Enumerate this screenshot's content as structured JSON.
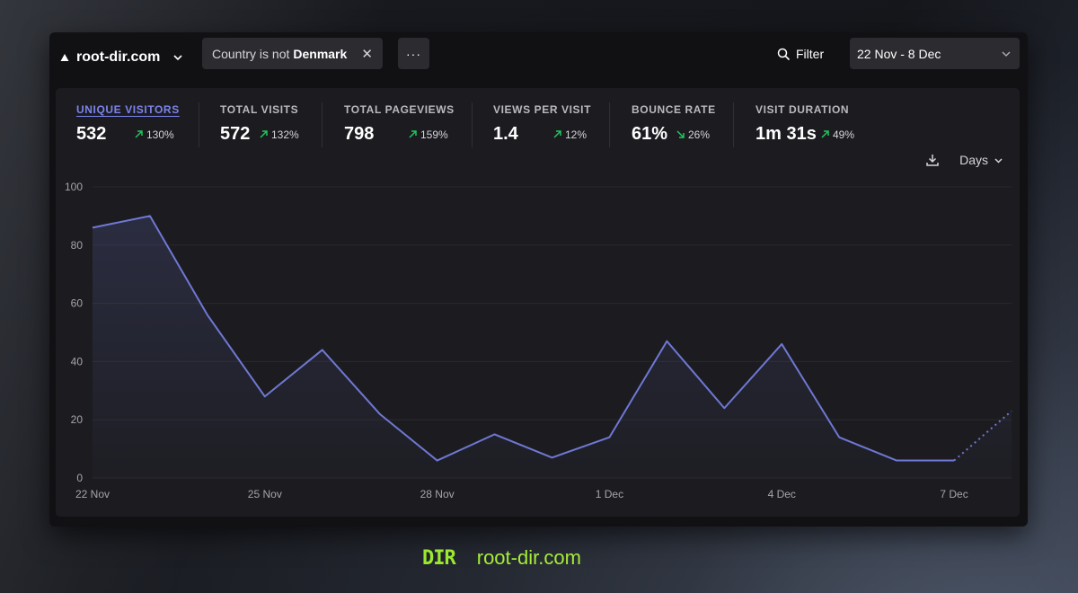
{
  "header": {
    "site_name": "root-dir.com",
    "filter_chip": {
      "prefix": "Country is not",
      "value": "Denmark",
      "remove": "✕"
    },
    "more_label": "···",
    "filter_label": "Filter",
    "date_range": "22 Nov - 8 Dec"
  },
  "stats": [
    {
      "label": "UNIQUE VISITORS",
      "value": "532",
      "change": "130%",
      "direction": "up"
    },
    {
      "label": "TOTAL VISITS",
      "value": "572",
      "change": "132%",
      "direction": "up"
    },
    {
      "label": "TOTAL PAGEVIEWS",
      "value": "798",
      "change": "159%",
      "direction": "up"
    },
    {
      "label": "VIEWS PER VISIT",
      "value": "1.4",
      "change": "12%",
      "direction": "up"
    },
    {
      "label": "BOUNCE RATE",
      "value": "61%",
      "change": "26%",
      "direction": "down"
    },
    {
      "label": "VISIT DURATION",
      "value": "1m 31s",
      "change": "49%",
      "direction": "up"
    }
  ],
  "tools": {
    "interval": "Days"
  },
  "colors": {
    "accent": "#7c84ec",
    "line": "#6f78d4",
    "up": "#22c55e",
    "brand": "#a6ec38"
  },
  "chart_data": {
    "type": "line",
    "title": "",
    "xlabel": "",
    "ylabel": "",
    "ylim": [
      0,
      100
    ],
    "yticks": [
      0,
      20,
      40,
      60,
      80,
      100
    ],
    "categories": [
      "22 Nov",
      "23 Nov",
      "24 Nov",
      "25 Nov",
      "26 Nov",
      "27 Nov",
      "28 Nov",
      "29 Nov",
      "30 Nov",
      "1 Dec",
      "2 Dec",
      "3 Dec",
      "4 Dec",
      "5 Dec",
      "6 Dec",
      "7 Dec",
      "8 Dec"
    ],
    "xtick_labels": [
      "22 Nov",
      "25 Nov",
      "28 Nov",
      "1 Dec",
      "4 Dec",
      "7 Dec"
    ],
    "series": [
      {
        "name": "Unique visitors",
        "values": [
          86,
          90,
          56,
          28,
          44,
          22,
          6,
          15,
          7,
          14,
          47,
          24,
          46,
          14,
          6,
          6,
          23
        ],
        "incomplete_last": true
      }
    ],
    "grid": true
  },
  "footer": {
    "logo_text": "DIR",
    "url": "root-dir.com"
  }
}
